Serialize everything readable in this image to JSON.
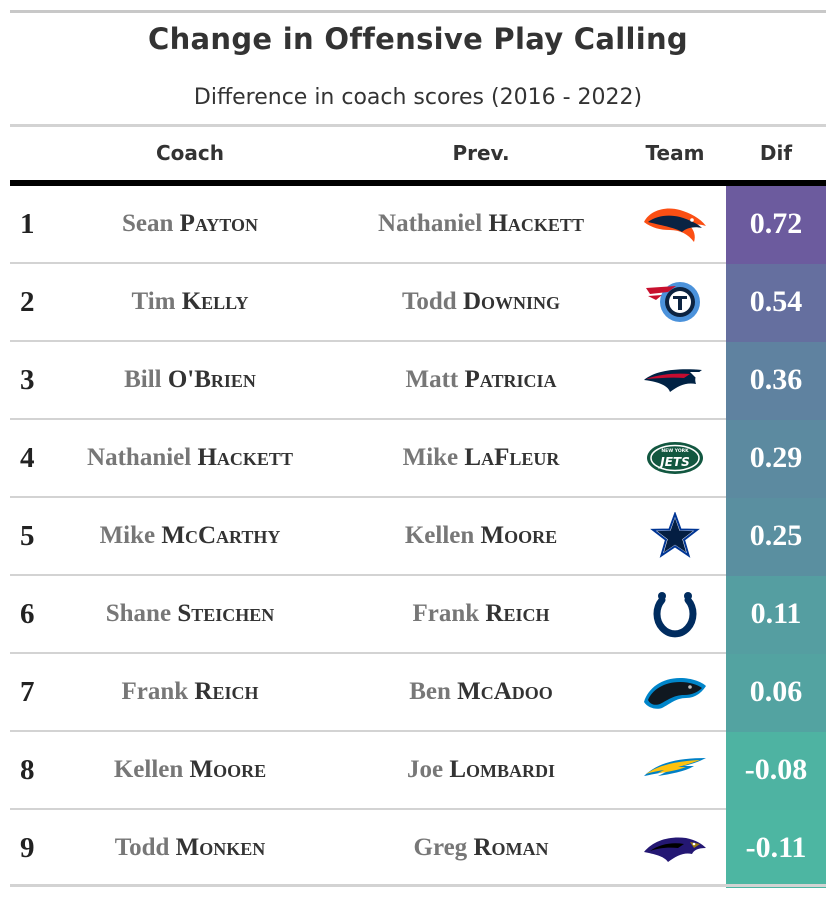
{
  "title": "Change in Offensive Play Calling",
  "subtitle": "Difference in coach scores (2016 - 2022)",
  "columns": {
    "coach": "Coach",
    "prev": "Prev.",
    "team": "Team",
    "dif": "Dif"
  },
  "chart_data": {
    "type": "table",
    "title": "Change in Offensive Play Calling",
    "subtitle": "Difference in coach scores (2016 - 2022)",
    "color_scale": {
      "high": "#6c5b9e",
      "low": "#4db6a2"
    },
    "rows": [
      {
        "rank": "1",
        "coach_first": "Sean",
        "coach_last": "Payton",
        "prev_first": "Nathaniel",
        "prev_last": "Hackett",
        "team_logo": "broncos-logo-icon",
        "dif": 0.72,
        "dif_label": "0.72"
      },
      {
        "rank": "2",
        "coach_first": "Tim",
        "coach_last": "Kelly",
        "prev_first": "Todd",
        "prev_last": "Downing",
        "team_logo": "titans-logo-icon",
        "dif": 0.54,
        "dif_label": "0.54"
      },
      {
        "rank": "3",
        "coach_first": "Bill",
        "coach_last": "O'Brien",
        "prev_first": "Matt",
        "prev_last": "Patricia",
        "team_logo": "patriots-logo-icon",
        "dif": 0.36,
        "dif_label": "0.36"
      },
      {
        "rank": "4",
        "coach_first": "Nathaniel",
        "coach_last": "Hackett",
        "prev_first": "Mike",
        "prev_last": "LaFleur",
        "team_logo": "jets-logo-icon",
        "dif": 0.29,
        "dif_label": "0.29"
      },
      {
        "rank": "5",
        "coach_first": "Mike",
        "coach_last": "McCarthy",
        "prev_first": "Kellen",
        "prev_last": "Moore",
        "team_logo": "cowboys-logo-icon",
        "dif": 0.25,
        "dif_label": "0.25"
      },
      {
        "rank": "6",
        "coach_first": "Shane",
        "coach_last": "Steichen",
        "prev_first": "Frank",
        "prev_last": "Reich",
        "team_logo": "colts-logo-icon",
        "dif": 0.11,
        "dif_label": "0.11"
      },
      {
        "rank": "7",
        "coach_first": "Frank",
        "coach_last": "Reich",
        "prev_first": "Ben",
        "prev_last": "McAdoo",
        "team_logo": "panthers-logo-icon",
        "dif": 0.06,
        "dif_label": "0.06"
      },
      {
        "rank": "8",
        "coach_first": "Kellen",
        "coach_last": "Moore",
        "prev_first": "Joe",
        "prev_last": "Lombardi",
        "team_logo": "chargers-logo-icon",
        "dif": -0.08,
        "dif_label": "-0.08"
      },
      {
        "rank": "9",
        "coach_first": "Todd",
        "coach_last": "Monken",
        "prev_first": "Greg",
        "prev_last": "Roman",
        "team_logo": "ravens-logo-icon",
        "dif": -0.11,
        "dif_label": "-0.11"
      }
    ]
  }
}
